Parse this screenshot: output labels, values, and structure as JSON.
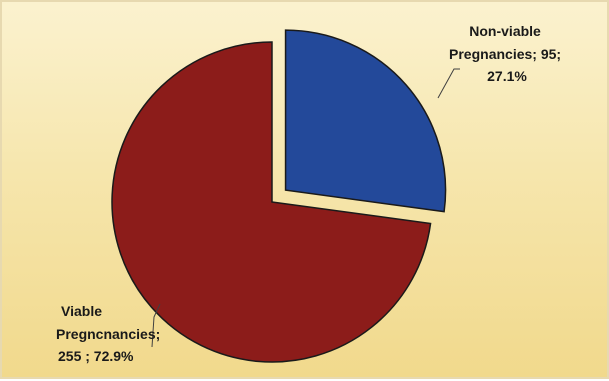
{
  "chart_data": {
    "type": "pie",
    "title": "",
    "slices": [
      {
        "label_lines": [
          "Non-viable",
          "Pregnancies; 95;",
          "27.1%"
        ],
        "name": "Non-viable Pregnancies",
        "value": 95,
        "percent": 27.1,
        "color": "#23499a",
        "exploded": true
      },
      {
        "label_lines": [
          "Viable",
          "Pregncnancies;",
          "255 ; 72.9%"
        ],
        "name": "Viable Pregncnancies",
        "value": 255,
        "percent": 72.9,
        "color": "#8c1c1a",
        "exploded": false
      }
    ]
  }
}
